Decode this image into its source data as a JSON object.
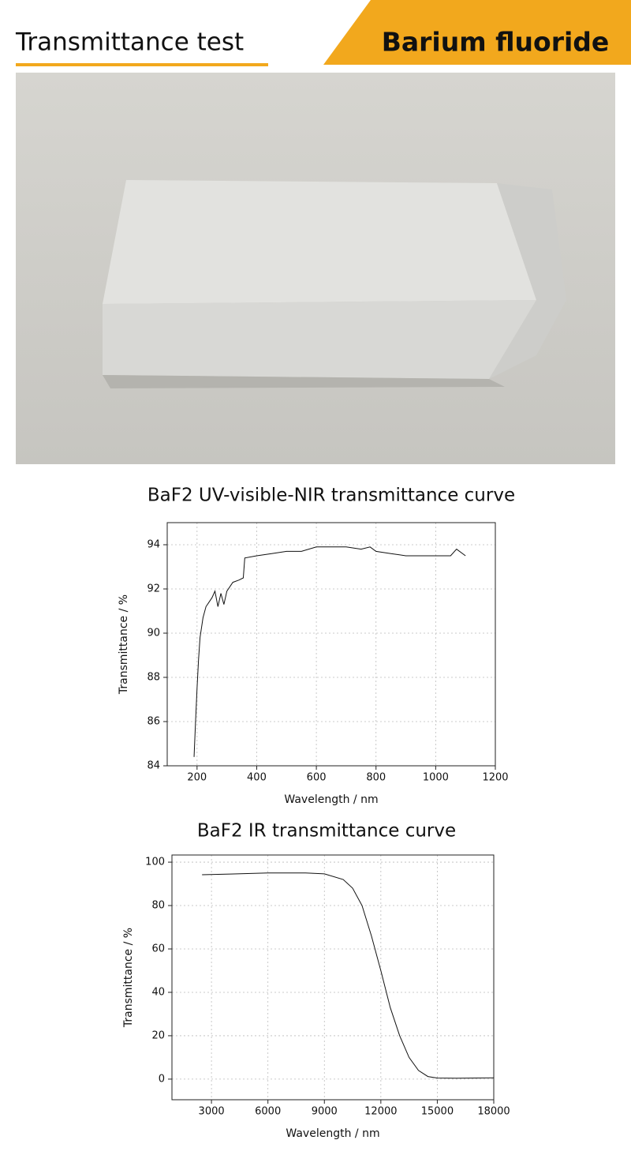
{
  "header": {
    "title": "Transmittance test",
    "badge": "Barium fluoride"
  },
  "chart_data": [
    {
      "type": "line",
      "title": "BaF2 UV-visible-NIR transmittance curve",
      "x_label": "Wavelength / nm",
      "y_label": "Transmittance / %",
      "x": [
        190,
        195,
        200,
        205,
        210,
        220,
        230,
        240,
        250,
        260,
        270,
        280,
        290,
        300,
        320,
        340,
        355,
        360,
        400,
        450,
        500,
        550,
        600,
        650,
        700,
        750,
        780,
        800,
        850,
        900,
        950,
        1000,
        1050,
        1070,
        1100
      ],
      "series": [
        {
          "color": "#111111",
          "values": [
            84.4,
            86,
            87.5,
            88.8,
            89.8,
            90.7,
            91.2,
            91.4,
            91.6,
            91.9,
            91.2,
            91.8,
            91.3,
            91.9,
            92.3,
            92.4,
            92.5,
            93.4,
            93.5,
            93.6,
            93.7,
            93.7,
            93.9,
            93.9,
            93.9,
            93.8,
            93.9,
            93.7,
            93.6,
            93.5,
            93.5,
            93.5,
            93.5,
            93.8,
            93.5
          ]
        }
      ],
      "xlim": [
        100,
        1200
      ],
      "xticks": [
        200,
        400,
        600,
        800,
        1000,
        1200
      ],
      "ylim": [
        84,
        95
      ],
      "yticks": [
        84,
        86,
        88,
        90,
        92,
        94
      ],
      "grid": true
    },
    {
      "type": "line",
      "title": "BaF2 IR transmittance curve",
      "x_label": "Wavelength / nm",
      "y_label": "Transmittance / %",
      "x": [
        2500,
        4000,
        6000,
        8000,
        9000,
        10000,
        10500,
        11000,
        11500,
        12000,
        12500,
        13000,
        13500,
        14000,
        14500,
        15000,
        16000,
        18000
      ],
      "series": [
        {
          "color": "#111111",
          "values": [
            94.2,
            94.5,
            95,
            95,
            94.6,
            92,
            88,
            80,
            66,
            50,
            33,
            20,
            10,
            4,
            1.2,
            0.5,
            0.4,
            0.6
          ]
        }
      ],
      "xlim": [
        900,
        18000
      ],
      "xticks": [
        3000,
        6000,
        9000,
        12000,
        15000,
        18000
      ],
      "ylim": [
        -9.5,
        103.3
      ],
      "yticks": [
        0,
        20,
        40,
        60,
        80,
        100
      ],
      "grid": true
    }
  ]
}
